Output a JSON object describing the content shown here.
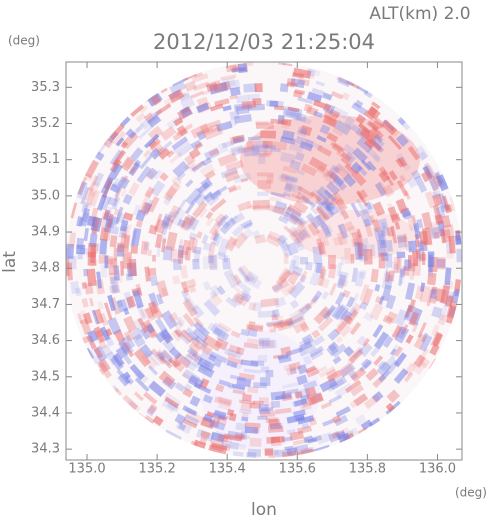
{
  "chart_data": {
    "type": "radar-image",
    "altitude_label": "ALT(km) 2.0",
    "title": "2012/12/03 21:25:04",
    "y_unit": "(deg)",
    "x_unit": "(deg)",
    "ylabel": "lat",
    "xlabel": "lon",
    "xlim": [
      134.94,
      136.07
    ],
    "ylim": [
      34.27,
      35.37
    ],
    "xticks": [
      {
        "value": 135,
        "label": "135.0"
      },
      135.2,
      135.4,
      135.6,
      135.8,
      {
        "value": 136,
        "label": "136.0"
      }
    ],
    "yticks": [
      34.3,
      34.4,
      34.5,
      34.6,
      34.7,
      34.8,
      34.9,
      {
        "value": 35,
        "label": "35.0"
      },
      35.1,
      35.2,
      35.3
    ]
  }
}
